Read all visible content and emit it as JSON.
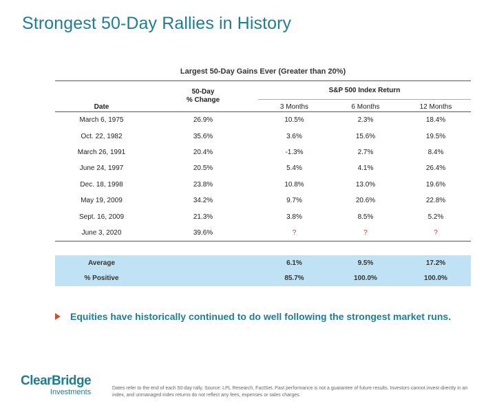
{
  "title": "Strongest 50-Day Rallies in History",
  "table": {
    "caption": "Largest 50-Day Gains Ever (Greater than 20%)",
    "header": {
      "date": "Date",
      "change_line1": "50-Day",
      "change_line2": "% Change",
      "group": "S&P 500 Index Return",
      "m3": "3 Months",
      "m6": "6 Months",
      "m12": "12 Months"
    },
    "rows": [
      {
        "date": "March 6, 1975",
        "change": "26.9%",
        "m3": "10.5%",
        "m6": "2.3%",
        "m12": "18.4%"
      },
      {
        "date": "Oct. 22, 1982",
        "change": "35.6%",
        "m3": "3.6%",
        "m6": "15.6%",
        "m12": "19.5%"
      },
      {
        "date": "March 26, 1991",
        "change": "20.4%",
        "m3": "-1.3%",
        "m6": "2.7%",
        "m12": "8.4%"
      },
      {
        "date": "June 24, 1997",
        "change": "20.5%",
        "m3": "5.4%",
        "m6": "4.1%",
        "m12": "26.4%"
      },
      {
        "date": "Dec. 18, 1998",
        "change": "23.8%",
        "m3": "10.8%",
        "m6": "13.0%",
        "m12": "19.6%"
      },
      {
        "date": "May 19, 2009",
        "change": "34.2%",
        "m3": "9.7%",
        "m6": "20.6%",
        "m12": "22.8%"
      },
      {
        "date": "Sept. 16, 2009",
        "change": "21.3%",
        "m3": "3.8%",
        "m6": "8.5%",
        "m12": "5.2%"
      },
      {
        "date": "June 3, 2020",
        "change": "39.6%",
        "m3": "?",
        "m6": "?",
        "m12": "?"
      }
    ],
    "summary": {
      "average": {
        "label": "Average",
        "m3": "6.1%",
        "m6": "9.5%",
        "m12": "17.2%"
      },
      "positive": {
        "label": "% Positive",
        "m3": "85.7%",
        "m6": "100.0%",
        "m12": "100.0%"
      }
    }
  },
  "takeaway": "Equities have historically continued to do well following the strongest market runs.",
  "logo": {
    "line1": "ClearBridge",
    "line2": "Investments"
  },
  "footnote": "Dates refer to the end of each 50-day rally. Source: LPL Research, FactSet. Past performance is not a guarantee of future results. Investors cannot invest directly in an index, and unmanaged index returns do not reflect any fees, expenses or sales charges.",
  "colors": {
    "brand": "#1f7d93",
    "summary_bg": "#bfe3f4",
    "arrow": "#d94a2b",
    "unknown": "#c0392b"
  }
}
